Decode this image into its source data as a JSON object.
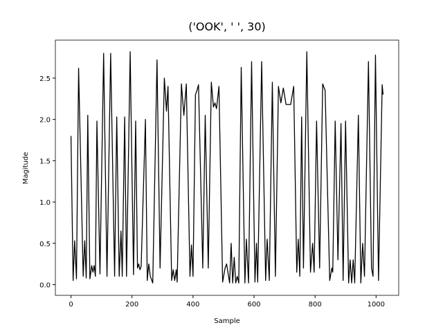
{
  "chart_data": {
    "type": "line",
    "title": "('OOK', '  ', 30)",
    "xlabel": "Sample",
    "ylabel": "Magitude",
    "xlim": [
      -51.15,
      1074.15
    ],
    "ylim": [
      -0.13,
      2.96
    ],
    "xticks": [
      0,
      200,
      400,
      600,
      800,
      1000
    ],
    "yticks": [
      {
        "value": 0,
        "label": "0.0"
      },
      0.5,
      {
        "value": 1,
        "label": "1.0"
      },
      1.5,
      {
        "value": 2,
        "label": "2.0"
      },
      2.5
    ],
    "grid": false,
    "series": [
      {
        "color": "#000000",
        "x": [
          0,
          7,
          12,
          18,
          25,
          40,
          45,
          50,
          55,
          62,
          68,
          72,
          76,
          80,
          85,
          95,
          107,
          118,
          130,
          143,
          150,
          158,
          164,
          168,
          176,
          182,
          194,
          205,
          212,
          218,
          222,
          226,
          230,
          244,
          250,
          255,
          260,
          268,
          282,
          292,
          306,
          313,
          318,
          330,
          335,
          340,
          345,
          348,
          362,
          370,
          378,
          390,
          395,
          400,
          408,
          413,
          418,
          432,
          440,
          450,
          460,
          467,
          472,
          477,
          485,
          497,
          505,
          510,
          520,
          525,
          530,
          535,
          540,
          545,
          550,
          558,
          570,
          575,
          582,
          592,
          603,
          608,
          612,
          625,
          638,
          643,
          650,
          660,
          670,
          680,
          688,
          696,
          705,
          720,
          730,
          740,
          745,
          750,
          756,
          762,
          773,
          785,
          792,
          797,
          805,
          815,
          825,
          833,
          848,
          855,
          858,
          866,
          875,
          885,
          892,
          900,
          910,
          915,
          920,
          925,
          930,
          942,
          950,
          956,
          962,
          975,
          985,
          990,
          998,
          1008,
          1020,
          1023
        ],
        "values": [
          1.8,
          0.05,
          0.53,
          0.07,
          2.62,
          0.1,
          0.53,
          0.08,
          2.05,
          0.07,
          0.23,
          0.15,
          0.23,
          0.1,
          1.98,
          0.13,
          2.8,
          0.1,
          2.8,
          0.1,
          2.03,
          0.1,
          0.65,
          0.1,
          2.03,
          0.1,
          2.82,
          0.12,
          1.98,
          0.2,
          0.25,
          0.18,
          0.22,
          2.0,
          0.05,
          0.25,
          0.1,
          0.02,
          2.72,
          0.2,
          2.5,
          2.1,
          2.4,
          0.05,
          0.18,
          0.05,
          0.18,
          0.03,
          2.43,
          2.05,
          2.43,
          0.1,
          0.48,
          0.1,
          2.3,
          2.35,
          2.42,
          0.2,
          2.05,
          0.2,
          2.45,
          2.15,
          2.2,
          2.13,
          2.4,
          0.03,
          0.2,
          0.25,
          0.02,
          0.5,
          0.02,
          0.33,
          0.02,
          0.1,
          0.02,
          2.63,
          0.02,
          0.55,
          0.02,
          2.7,
          0.03,
          0.5,
          0.03,
          2.7,
          0.05,
          0.55,
          0.05,
          2.45,
          0.1,
          2.4,
          2.2,
          2.38,
          2.18,
          2.18,
          2.4,
          0.15,
          0.55,
          0.1,
          2.03,
          0.2,
          2.82,
          0.15,
          0.5,
          0.15,
          1.98,
          0.2,
          2.43,
          2.35,
          0.05,
          0.2,
          0.15,
          1.98,
          0.3,
          1.95,
          0.05,
          1.98,
          0.02,
          0.3,
          0.02,
          0.3,
          0.02,
          2.05,
          0.02,
          0.5,
          0.1,
          2.7,
          0.2,
          0.1,
          2.78,
          0.05,
          2.42,
          2.3
        ]
      }
    ]
  }
}
